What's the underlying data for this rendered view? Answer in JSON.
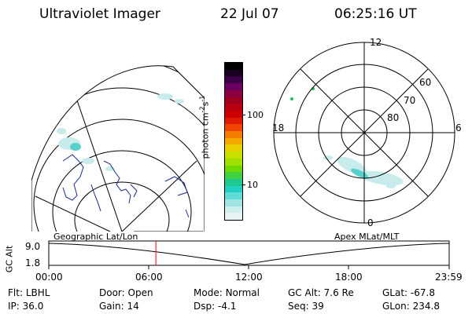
{
  "header": {
    "title": "Ultraviolet Imager",
    "date": "22 Jul 07",
    "time": "06:25:16 UT"
  },
  "colorbar": {
    "label": "photon cm",
    "label_sup1": "-2",
    "label_mid": "s",
    "label_sup2": "-1",
    "ticks": [
      "100",
      "10"
    ],
    "tick_values": [
      100,
      10
    ],
    "colors": [
      "#000000",
      "#1a0020",
      "#3a0048",
      "#6a0060",
      "#8a0040",
      "#a00020",
      "#b80010",
      "#cc0000",
      "#e01a00",
      "#ee4400",
      "#f57a00",
      "#f5a800",
      "#e8d000",
      "#c8e000",
      "#a0e000",
      "#70d800",
      "#40d040",
      "#20c890",
      "#20d0c0",
      "#60dcd8",
      "#a0e4e4",
      "#cfeeee",
      "#e8f4f4"
    ]
  },
  "polar_plot": {
    "mlt_labels": [
      "12",
      "18",
      "6",
      "0"
    ],
    "lat_labels": [
      "60",
      "70",
      "80"
    ],
    "lat_values": [
      60,
      70,
      80
    ]
  },
  "timeline": {
    "left_label": "Geographic Lat/Lon",
    "right_label": "Apex MLat/MLT",
    "axis_title": "GC Alt",
    "y_ticks": [
      "9.0",
      "1.8"
    ],
    "x_ticks": [
      "00:00",
      "06:00",
      "12:00",
      "18:00",
      "23:59"
    ],
    "current_time_hours": 6.42
  },
  "status": {
    "row1": [
      {
        "label": "Flt:",
        "value": "LBHL"
      },
      {
        "label": "Door:",
        "value": "Open"
      },
      {
        "label": "Mode:",
        "value": "Normal"
      },
      {
        "label": "GC Alt:",
        "value": "7.6 Re"
      },
      {
        "label": "GLat:",
        "value": "-67.8"
      }
    ],
    "row2": [
      {
        "label": "IP:",
        "value": "36.0"
      },
      {
        "label": "Gain:",
        "value": "14"
      },
      {
        "label": "Dsp:",
        "value": "-4.1"
      },
      {
        "label": "Seq:",
        "value": "39"
      },
      {
        "label": "GLon:",
        "value": "234.8"
      }
    ]
  },
  "colors": {
    "aurora_light": "#c8ecec",
    "aurora_mid": "#58d0cc",
    "aurora_green": "#20c060",
    "time_marker": "#ff0000",
    "coastline": "#1a2a8a"
  }
}
